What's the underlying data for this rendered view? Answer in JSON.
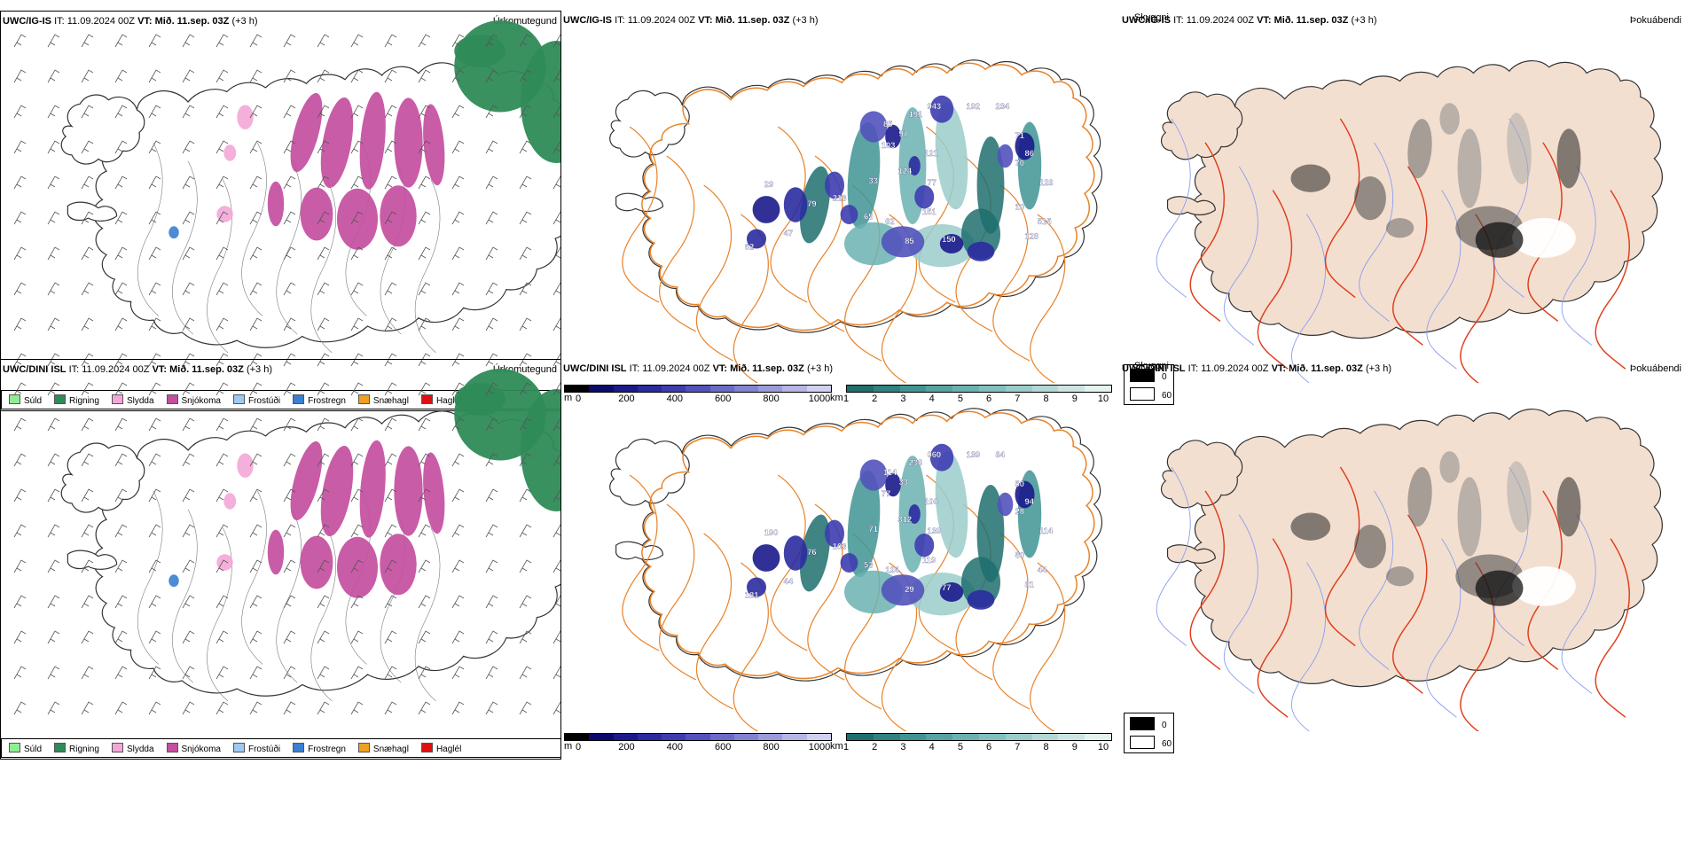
{
  "rows": [
    {
      "model": "UWC/IG-IS",
      "it_label": "IT:",
      "it_value": "11.09.2024 00Z",
      "vt_label": "VT:",
      "vt_value": "Mið. 11.sep. 03Z",
      "lead": "(+3 h)"
    },
    {
      "model": "UWC/DINI ISL",
      "it_label": "IT:",
      "it_value": "11.09.2024 00Z",
      "vt_label": "VT:",
      "vt_value": "Mið. 11.sep. 03Z",
      "lead": "(+3 h)"
    }
  ],
  "panel_titles": {
    "precip": "Úrkomutegund",
    "cloud": "Skyggni",
    "fog": "Þokuábendi"
  },
  "precip_legend": [
    {
      "label": "Súld",
      "color": "#90ee90"
    },
    {
      "label": "Rigning",
      "color": "#2e8b57"
    },
    {
      "label": "Slydda",
      "color": "#f4a6d7"
    },
    {
      "label": "Snjókoma",
      "color": "#c44ea0"
    },
    {
      "label": "Frostúði",
      "color": "#9ec9f0"
    },
    {
      "label": "Frostregn",
      "color": "#3a7fd0"
    },
    {
      "label": "Snæhagl",
      "color": "#f0a020"
    },
    {
      "label": "Haglél",
      "color": "#e01010"
    }
  ],
  "cloudbase_bar": {
    "unit": "m",
    "ticks": [
      "0",
      "200",
      "400",
      "600",
      "800",
      "1000"
    ],
    "colors": [
      "#000000",
      "#0b0b6b",
      "#1a1a8c",
      "#2b2ba0",
      "#3d3db0",
      "#5252bd",
      "#6a6ac8",
      "#8282d2",
      "#9b9bdc",
      "#b5b5e6",
      "#d0d0f0"
    ]
  },
  "visibility_bar": {
    "unit": "km",
    "ticks": [
      "1",
      "2",
      "3",
      "4",
      "5",
      "6",
      "7",
      "8",
      "9",
      "10"
    ],
    "colors": [
      "#1f6f6f",
      "#2e8282",
      "#409494",
      "#55a3a3",
      "#6bb1b1",
      "#82bfbf",
      "#9accca",
      "#b2d9d6",
      "#cbe5e2",
      "#e4f2f0"
    ]
  },
  "fog_legend": [
    {
      "label": "0",
      "color": "#000000"
    },
    {
      "label": "60",
      "color": "#ffffff"
    }
  ],
  "cloud_labels": [
    [
      "943",
      "192",
      "234",
      "191",
      "85",
      "71",
      "97",
      "103",
      "121",
      "86",
      "70",
      "124",
      "128",
      "77",
      "33",
      "29",
      "213",
      "79",
      "65",
      "151",
      "62",
      "515",
      "10",
      "47",
      "85",
      "150",
      "128",
      "62"
    ],
    [
      "060",
      "139",
      "84",
      "236",
      "114",
      "50",
      "33",
      "77",
      "100",
      "94",
      "28",
      "312",
      "114",
      "139",
      "71",
      "190",
      "103",
      "76",
      "53",
      "119",
      "124",
      "44",
      "50",
      "44",
      "29",
      "77",
      "81",
      "181"
    ]
  ]
}
